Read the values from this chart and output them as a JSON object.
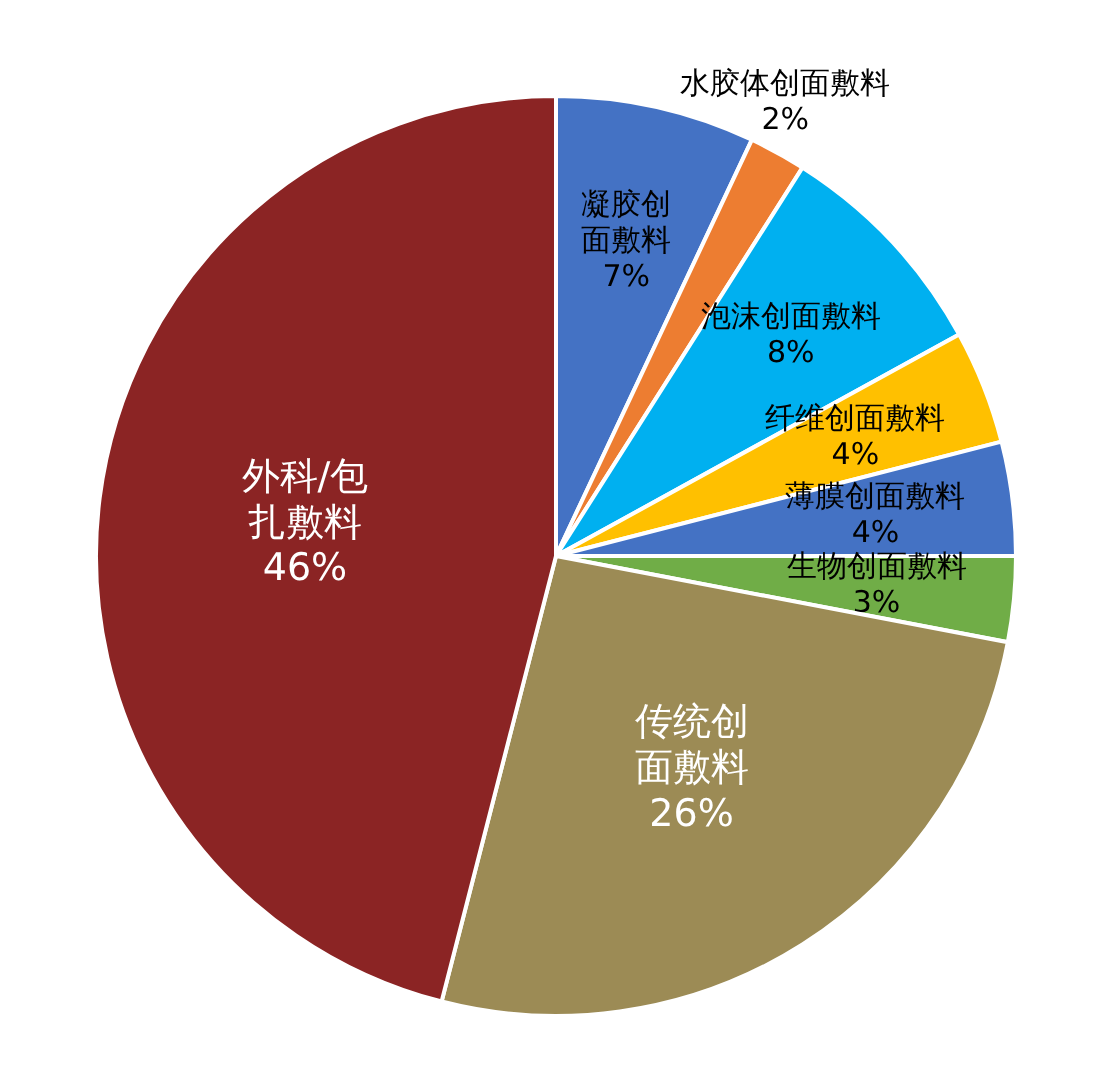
{
  "chart_data": {
    "type": "pie",
    "categories": [
      "凝胶创面敷料",
      "水胶体创面敷料",
      "泡沫创面敷料",
      "纤维创面敷料",
      "薄膜创面敷料",
      "生物创面敷料",
      "传统创面敷料",
      "外科/包扎敷料"
    ],
    "values": [
      7,
      2,
      8,
      4,
      4,
      3,
      26,
      46
    ],
    "colors": [
      "#4472c4",
      "#ed7d31",
      "#00b0f0",
      "#ffc000",
      "#4472c4",
      "#70ad47",
      "#9c8b55",
      "#8b2424"
    ],
    "value_labels": [
      "7%",
      "2%",
      "8%",
      "4%",
      "4%",
      "3%",
      "26%",
      "46%"
    ]
  }
}
